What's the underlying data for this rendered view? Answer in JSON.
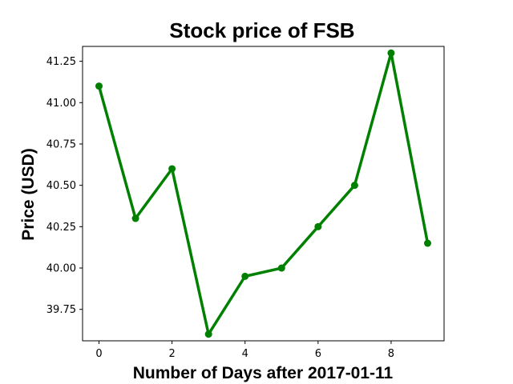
{
  "chart_data": {
    "type": "line",
    "title": "Stock price of FSB",
    "xlabel": "Number of Days after 2017-01-11",
    "ylabel": "Price (USD)",
    "x": [
      0,
      1,
      2,
      3,
      4,
      5,
      6,
      7,
      8,
      9
    ],
    "series": [
      {
        "values": [
          41.1,
          40.3,
          40.6,
          39.6,
          39.95,
          40.0,
          40.25,
          40.5,
          41.3,
          40.15
        ],
        "color": "#008000"
      }
    ],
    "xlim": [
      -0.45,
      9.45
    ],
    "ylim": [
      39.56,
      41.34
    ],
    "xticks": [
      0,
      2,
      4,
      6,
      8
    ],
    "xtick_labels": [
      "0",
      "2",
      "4",
      "6",
      "8"
    ],
    "yticks": [
      39.75,
      40.0,
      40.25,
      40.5,
      40.75,
      41.0,
      41.25
    ],
    "ytick_labels": [
      "39.75",
      "40.00",
      "40.25",
      "40.50",
      "40.75",
      "41.00",
      "41.25"
    ],
    "grid": false,
    "legend": "none"
  }
}
